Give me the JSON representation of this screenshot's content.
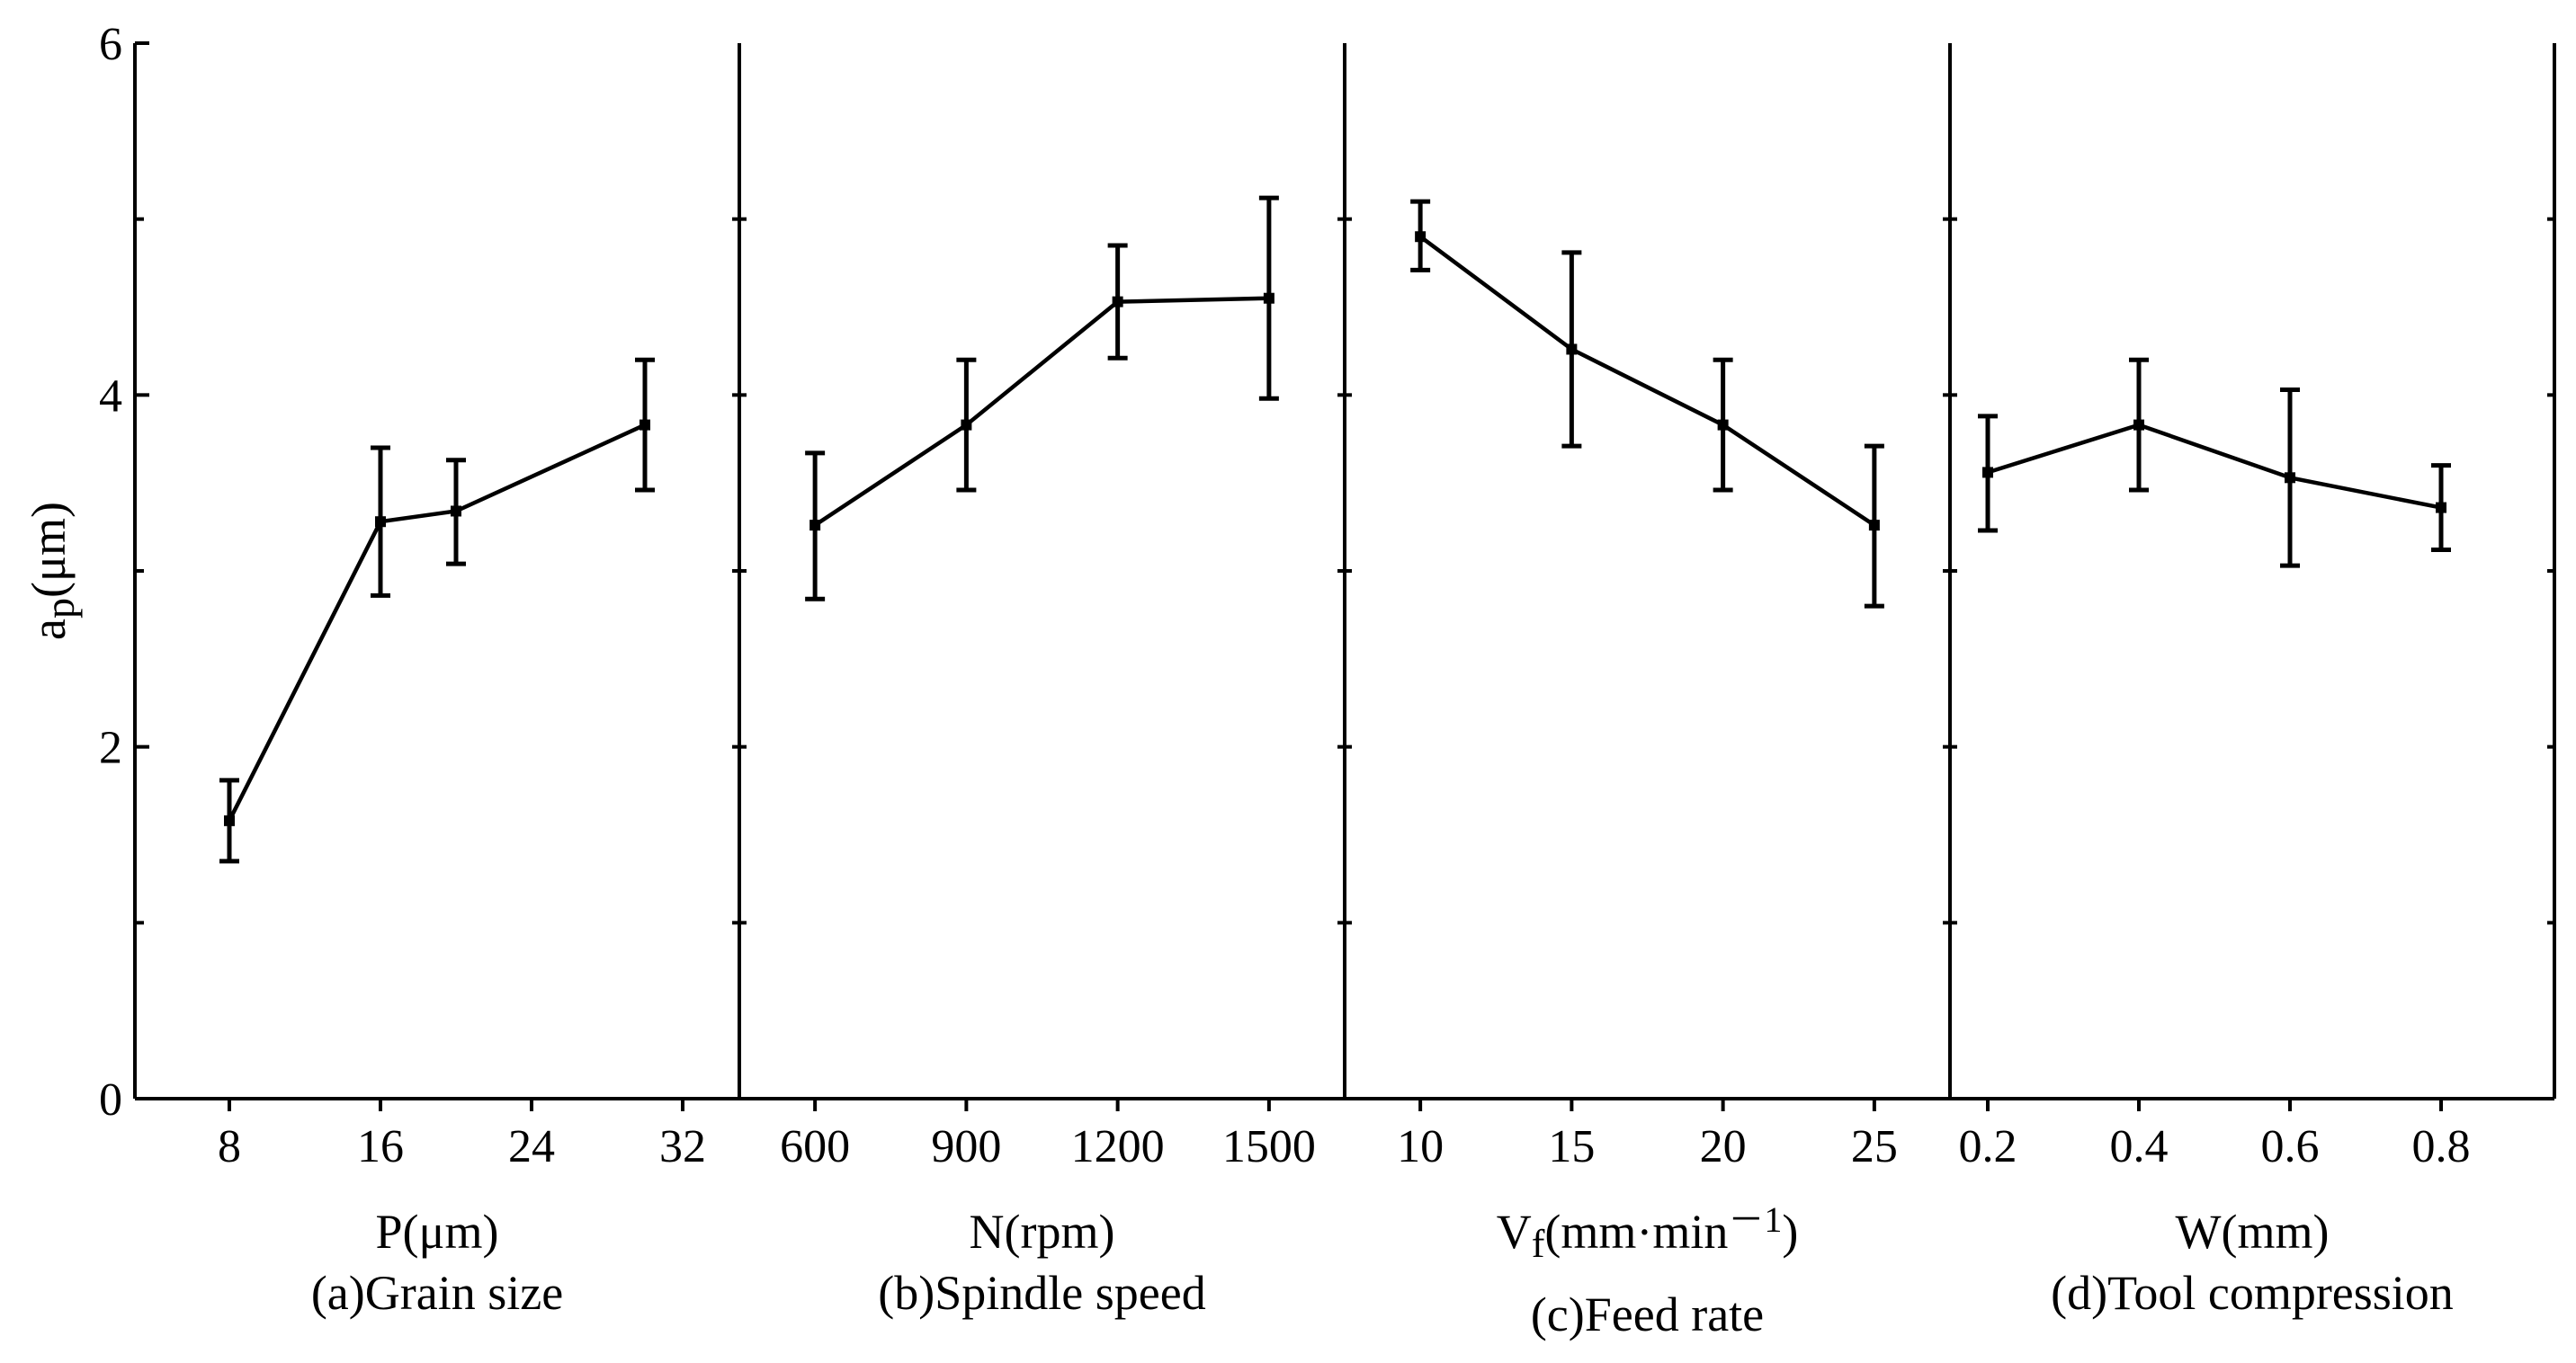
{
  "chart_data": {
    "type": "line",
    "ylabel": "a",
    "ylabel_sub": "p",
    "ylabel_unit": "(μm)",
    "ylim": [
      0,
      6
    ],
    "yticks": [
      0,
      2,
      4,
      6
    ],
    "panels": [
      {
        "id": "a",
        "xlabel": "P(μm)",
        "caption": "(a)Grain size",
        "xlim": [
          3,
          35
        ],
        "xticks": [
          8,
          16,
          24,
          32
        ],
        "xtick_labels": [
          "8",
          "16",
          "24",
          "32"
        ],
        "x": [
          8,
          16,
          20,
          30
        ],
        "y": [
          1.58,
          3.28,
          3.34,
          3.83
        ],
        "err_low": [
          1.35,
          2.86,
          3.04,
          3.46
        ],
        "err_high": [
          1.81,
          3.7,
          3.63,
          4.2
        ]
      },
      {
        "id": "b",
        "xlabel": "N(rpm)",
        "caption": "(b)Spindle speed",
        "xlim": [
          450,
          1650
        ],
        "xticks": [
          600,
          900,
          1200,
          1500
        ],
        "xtick_labels": [
          "600",
          "900",
          "1200",
          "1500"
        ],
        "x": [
          600,
          900,
          1200,
          1500
        ],
        "y": [
          3.26,
          3.83,
          4.53,
          4.55
        ],
        "err_low": [
          2.84,
          3.46,
          4.21,
          3.98
        ],
        "err_high": [
          3.67,
          4.2,
          4.85,
          5.12
        ]
      },
      {
        "id": "c",
        "xlabel": "V",
        "xlabel_sub": "f",
        "xlabel_rest": "(mm·min",
        "xlabel_sup": "－1",
        "xlabel_end": ")",
        "caption": "(c)Feed rate",
        "xlim": [
          7.5,
          27.5
        ],
        "xticks": [
          10,
          15,
          20,
          25
        ],
        "xtick_labels": [
          "10",
          "15",
          "20",
          "25"
        ],
        "x": [
          10,
          15,
          20,
          25
        ],
        "y": [
          4.9,
          4.26,
          3.83,
          3.26
        ],
        "err_low": [
          4.71,
          3.71,
          3.46,
          2.8
        ],
        "err_high": [
          5.1,
          4.81,
          4.2,
          3.71
        ]
      },
      {
        "id": "d",
        "xlabel": "W(mm)",
        "caption": "(d)Tool compression",
        "xlim": [
          0.15,
          0.95
        ],
        "xticks": [
          0.2,
          0.4,
          0.6,
          0.8
        ],
        "xtick_labels": [
          "0.2",
          "0.4",
          "0.6",
          "0.8"
        ],
        "x": [
          0.2,
          0.4,
          0.6,
          0.8
        ],
        "y": [
          3.56,
          3.83,
          3.53,
          3.36
        ],
        "err_low": [
          3.23,
          3.46,
          3.03,
          3.12
        ],
        "err_high": [
          3.88,
          4.2,
          4.03,
          3.6
        ]
      }
    ]
  }
}
